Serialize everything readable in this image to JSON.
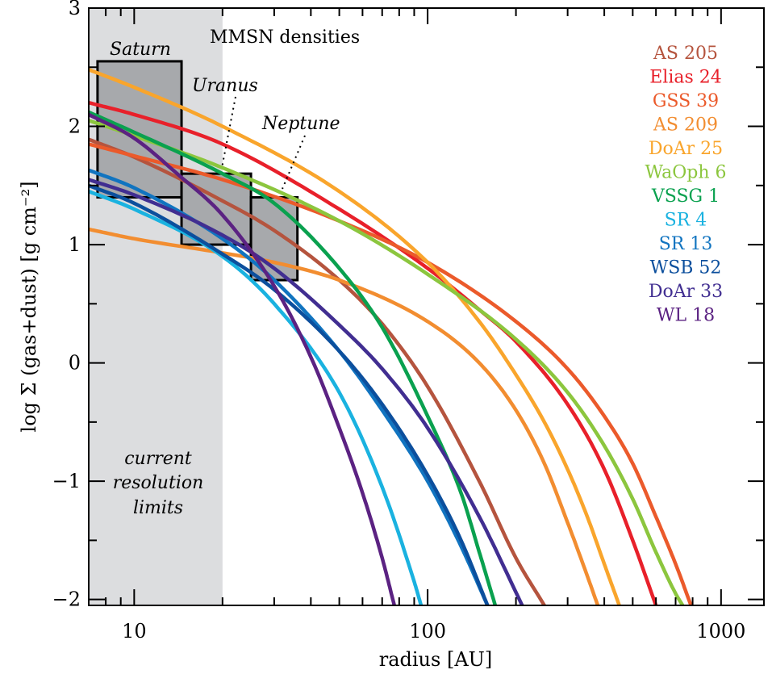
{
  "chart_data": {
    "type": "line",
    "xlabel": "radius [AU]",
    "ylabel": "log Σ (gas+dust) [g cm⁻²]",
    "xscale": "log",
    "xlim": [
      7,
      1400
    ],
    "ylim": [
      -2.05,
      3.0
    ],
    "xticks": [
      {
        "value": 10,
        "label": "10"
      },
      {
        "value": 100,
        "label": "100"
      },
      {
        "value": 1000,
        "label": "1000"
      }
    ],
    "yticks": [
      {
        "value": 3,
        "label": "3"
      },
      {
        "value": 2,
        "label": "2"
      },
      {
        "value": 1,
        "label": "1"
      },
      {
        "value": 0,
        "label": "0"
      },
      {
        "value": -1,
        "label": "−1"
      },
      {
        "value": -2,
        "label": "−2"
      }
    ],
    "shaded_region": {
      "x": [
        7,
        20
      ],
      "color": "#dcdddf",
      "label_lines": [
        "current",
        "resolution",
        "limits"
      ]
    },
    "mmsn": {
      "title": "MMSN densities",
      "boxes": [
        {
          "name": "Saturn",
          "x": [
            7.5,
            14.5
          ],
          "y": [
            1.4,
            2.55
          ]
        },
        {
          "name": "Uranus",
          "x": [
            14.5,
            25
          ],
          "y": [
            1.0,
            1.6
          ]
        },
        {
          "name": "Neptune",
          "x": [
            25,
            36
          ],
          "y": [
            0.7,
            1.4
          ]
        }
      ]
    },
    "legend_placement": "top-right",
    "series": [
      {
        "name": "AS 205",
        "color": "#b5543e",
        "x": [
          7,
          10,
          20,
          30,
          50,
          70,
          100,
          150,
          200,
          250
        ],
        "y": [
          1.89,
          1.74,
          1.37,
          1.12,
          0.7,
          0.33,
          -0.2,
          -1.0,
          -1.65,
          -2.05
        ]
      },
      {
        "name": "Elias 24",
        "color": "#e8202a",
        "x": [
          7,
          10,
          20,
          50,
          100,
          150,
          200,
          300,
          400,
          500,
          600
        ],
        "y": [
          2.2,
          2.1,
          1.85,
          1.3,
          0.8,
          0.45,
          0.18,
          -0.35,
          -0.9,
          -1.5,
          -2.05
        ]
      },
      {
        "name": "GSS 39",
        "color": "#eb5a2b",
        "x": [
          7,
          10,
          20,
          50,
          100,
          200,
          300,
          400,
          500,
          600,
          700,
          790
        ],
        "y": [
          1.85,
          1.75,
          1.55,
          1.2,
          0.85,
          0.35,
          -0.05,
          -0.45,
          -0.85,
          -1.3,
          -1.7,
          -2.05
        ]
      },
      {
        "name": "AS 209",
        "color": "#f28d30",
        "x": [
          7,
          10,
          20,
          30,
          50,
          100,
          150,
          200,
          250,
          300,
          350,
          380
        ],
        "y": [
          1.13,
          1.05,
          0.93,
          0.85,
          0.7,
          0.35,
          0.0,
          -0.4,
          -0.85,
          -1.35,
          -1.8,
          -2.05
        ]
      },
      {
        "name": "DoAr 25",
        "color": "#f9a52c",
        "x": [
          7,
          10,
          20,
          50,
          100,
          150,
          200,
          250,
          300,
          350,
          400,
          450
        ],
        "y": [
          2.48,
          2.33,
          2.0,
          1.45,
          0.85,
          0.35,
          -0.1,
          -0.5,
          -0.9,
          -1.3,
          -1.7,
          -2.05
        ]
      },
      {
        "name": "WaOph 6",
        "color": "#8cc63e",
        "x": [
          7,
          10,
          20,
          50,
          100,
          200,
          300,
          400,
          500,
          600,
          700,
          740
        ],
        "y": [
          2.05,
          1.92,
          1.65,
          1.2,
          0.75,
          0.2,
          -0.25,
          -0.7,
          -1.15,
          -1.6,
          -1.95,
          -2.05
        ]
      },
      {
        "name": "VSSG 1",
        "color": "#0aa14f",
        "x": [
          7,
          10,
          20,
          30,
          50,
          70,
          100,
          130,
          150,
          170
        ],
        "y": [
          2.12,
          1.95,
          1.6,
          1.35,
          0.8,
          0.3,
          -0.45,
          -1.1,
          -1.6,
          -2.05
        ]
      },
      {
        "name": "SR 4",
        "color": "#1ab2e0",
        "x": [
          7,
          10,
          20,
          30,
          50,
          70,
          90,
          95
        ],
        "y": [
          1.45,
          1.3,
          0.9,
          0.5,
          -0.25,
          -1.05,
          -1.85,
          -2.05
        ]
      },
      {
        "name": "SR 13",
        "color": "#1174c0",
        "x": [
          7,
          10,
          20,
          30,
          50,
          70,
          100,
          130,
          160
        ],
        "y": [
          1.63,
          1.48,
          1.05,
          0.7,
          0.1,
          -0.4,
          -1.0,
          -1.55,
          -2.05
        ]
      },
      {
        "name": "WSB 52",
        "color": "#0c4f9d",
        "x": [
          7,
          10,
          20,
          30,
          50,
          70,
          100,
          130,
          160
        ],
        "y": [
          1.5,
          1.35,
          0.92,
          0.62,
          0.1,
          -0.35,
          -0.95,
          -1.5,
          -2.05
        ]
      },
      {
        "name": "DoAr 33",
        "color": "#412e91",
        "x": [
          7,
          10,
          20,
          30,
          50,
          70,
          100,
          150,
          210
        ],
        "y": [
          1.55,
          1.42,
          1.08,
          0.8,
          0.32,
          -0.05,
          -0.55,
          -1.3,
          -2.05
        ]
      },
      {
        "name": "WL 18",
        "color": "#5b2282",
        "x": [
          7,
          10,
          14,
          20,
          30,
          40,
          50,
          60,
          70,
          77
        ],
        "y": [
          2.1,
          1.9,
          1.6,
          1.25,
          0.65,
          0.05,
          -0.55,
          -1.1,
          -1.65,
          -2.05
        ]
      }
    ]
  }
}
